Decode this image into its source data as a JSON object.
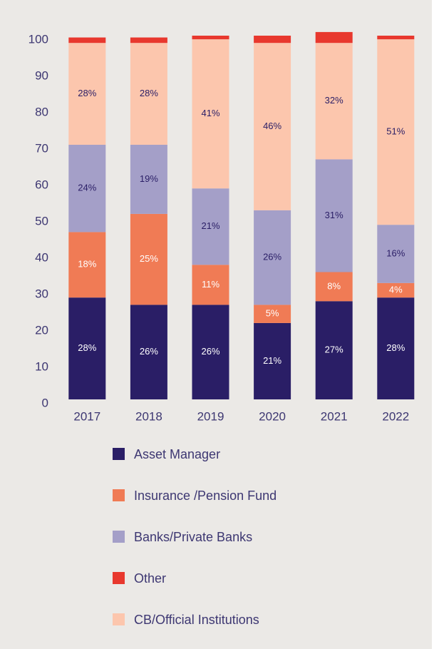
{
  "chart_data": {
    "type": "bar",
    "stacked": true,
    "categories": [
      "2017",
      "2018",
      "2019",
      "2020",
      "2021",
      "2022"
    ],
    "series": [
      {
        "name": "Asset Manager",
        "color": "#2a1e66",
        "values": [
          28,
          26,
          26,
          21,
          27,
          28
        ],
        "value_labels": [
          "28%",
          "26%",
          "26%",
          "21%",
          "27%",
          "28%"
        ]
      },
      {
        "name": "Insurance /Pension Fund",
        "color": "#f07b55",
        "values": [
          18,
          25,
          11,
          5,
          8,
          4
        ],
        "value_labels": [
          "18%",
          "25%",
          "11%",
          "5%",
          "8%",
          "4%"
        ]
      },
      {
        "name": "Banks/Private Banks",
        "color": "#a49fc8",
        "values": [
          24,
          19,
          21,
          26,
          31,
          16
        ],
        "value_labels": [
          "24%",
          "19%",
          "21%",
          "26%",
          "31%",
          "16%"
        ]
      },
      {
        "name": "Other",
        "color": "#e8382e",
        "values": [
          1.5,
          1.5,
          1,
          2,
          3,
          1
        ]
      },
      {
        "name": "CB/Official Institutions",
        "color": "#fcc6ad",
        "values": [
          28,
          28,
          41,
          46,
          32,
          51
        ],
        "value_labels": [
          "28%",
          "28%",
          "41%",
          "46%",
          "32%",
          "51%"
        ]
      }
    ],
    "ylim": [
      0,
      100
    ],
    "yticks": [
      0,
      10,
      20,
      30,
      40,
      50,
      60,
      70,
      80,
      90,
      100
    ]
  }
}
